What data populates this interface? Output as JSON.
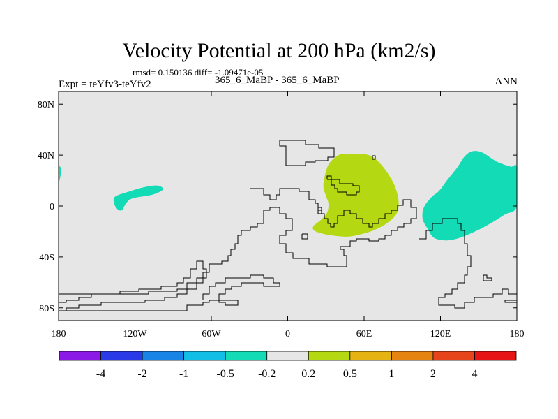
{
  "header": {
    "title": "Velocity Potential at 200 hPa (km2/s)",
    "stats": "rmsd= 0.150136 diff= -1.09471e-05",
    "expt": "Expt = teYfv3-teYfv2",
    "case": "365_6_MaBP - 365_6_MaBP",
    "season": "ANN"
  },
  "chart_data": {
    "type": "heatmap",
    "title": "Velocity Potential at 200 hPa (km2/s)",
    "xlabel": "",
    "ylabel": "",
    "xlim": [
      -180,
      180
    ],
    "ylim": [
      -90,
      90
    ],
    "x_ticks": [
      {
        "value": -180,
        "label": "180"
      },
      {
        "value": -120,
        "label": "120W"
      },
      {
        "value": -60,
        "label": "60W"
      },
      {
        "value": 0,
        "label": "0"
      },
      {
        "value": 60,
        "label": "60E"
      },
      {
        "value": 120,
        "label": "120E"
      },
      {
        "value": 180,
        "label": "180"
      }
    ],
    "y_ticks": [
      {
        "value": 80,
        "label": "80N"
      },
      {
        "value": 40,
        "label": "40N"
      },
      {
        "value": 0,
        "label": "0"
      },
      {
        "value": -40,
        "label": "40S"
      },
      {
        "value": -80,
        "label": "80S"
      }
    ],
    "background_color": "#e6e6e6",
    "colorbar": {
      "colors": [
        "#8c1ae6",
        "#2a3ae6",
        "#1a84e6",
        "#12bee6",
        "#12dbb6",
        "#e6e6e6",
        "#b4d812",
        "#e6b412",
        "#e68412",
        "#e6441a",
        "#e61414"
      ],
      "labels": [
        "-4",
        "-2",
        "-1",
        "-0.5",
        "-0.2",
        "0.2",
        "0.5",
        "1",
        "2",
        "4"
      ]
    },
    "shaded_regions": [
      {
        "name": "positive-anomaly-eastern-hemisphere",
        "band": "0.2 to 0.5",
        "color": "#b4d812",
        "polygon": [
          [
            33,
            34
          ],
          [
            40,
            40
          ],
          [
            47,
            41
          ],
          [
            58,
            41
          ],
          [
            66,
            39
          ],
          [
            73,
            33
          ],
          [
            79,
            25
          ],
          [
            84,
            16
          ],
          [
            87,
            5
          ],
          [
            86,
            -5
          ],
          [
            80,
            -12
          ],
          [
            72,
            -17
          ],
          [
            62,
            -21
          ],
          [
            48,
            -24
          ],
          [
            34,
            -23
          ],
          [
            22,
            -20
          ],
          [
            20,
            -16
          ],
          [
            26,
            -11
          ],
          [
            31,
            -5
          ],
          [
            32,
            2
          ],
          [
            30,
            8
          ],
          [
            28,
            16
          ],
          [
            30,
            27
          ]
        ]
      },
      {
        "name": "negative-anomaly-west-pacific",
        "band": "-0.5 to -0.2",
        "color": "#12dbb6",
        "polygon": [
          [
            125,
            20
          ],
          [
            133,
            30
          ],
          [
            139,
            39
          ],
          [
            145,
            43
          ],
          [
            153,
            42
          ],
          [
            164,
            35
          ],
          [
            175,
            31
          ],
          [
            180,
            30
          ],
          [
            180,
            0
          ],
          [
            170,
            -7
          ],
          [
            157,
            -15
          ],
          [
            145,
            -21
          ],
          [
            135,
            -25
          ],
          [
            125,
            -27
          ],
          [
            115,
            -25
          ],
          [
            110,
            -18
          ],
          [
            106,
            -10
          ],
          [
            107,
            -1
          ],
          [
            113,
            7
          ],
          [
            119,
            12
          ]
        ]
      },
      {
        "name": "negative-anomaly-east-pacific",
        "band": "-0.5 to -0.2",
        "color": "#12dbb6",
        "polygon": [
          [
            -136,
            7
          ],
          [
            -126,
            11
          ],
          [
            -112,
            15
          ],
          [
            -102,
            16
          ],
          [
            -98,
            13
          ],
          [
            -106,
            9
          ],
          [
            -122,
            6
          ],
          [
            -127,
            2
          ],
          [
            -130,
            -3
          ],
          [
            -133,
            -3
          ],
          [
            -136,
            1
          ]
        ]
      },
      {
        "name": "negative-anomaly-dateline-edge",
        "band": "-0.5 to -0.2",
        "color": "#12dbb6",
        "polygon": [
          [
            -180,
            31
          ],
          [
            -178,
            29
          ],
          [
            -179,
            21
          ],
          [
            -180,
            20
          ]
        ]
      }
    ]
  }
}
